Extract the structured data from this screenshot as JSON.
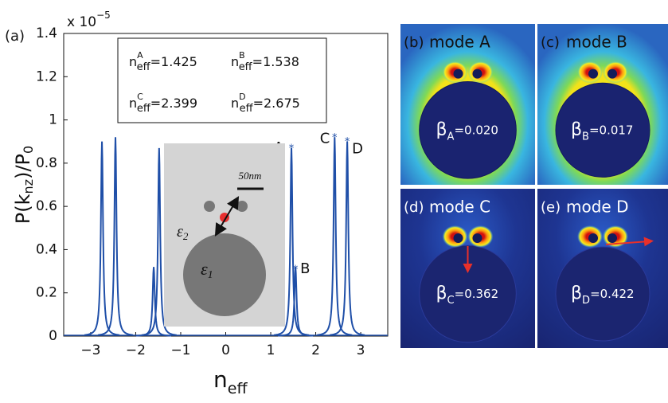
{
  "chart_data": {
    "type": "line",
    "panel_label": "(a)",
    "multiplier": {
      "base": "x 10",
      "exp": "−5"
    },
    "y_label": {
      "base": "P(k",
      "sub": "nz",
      "mid": ")/P",
      "sub2": "0"
    },
    "x_label": {
      "base": "n",
      "sub": "eff"
    },
    "x": [
      -2.75,
      -2.45,
      -1.6,
      -1.48,
      1.46,
      1.55,
      2.42,
      2.7
    ],
    "values": [
      0.9,
      0.92,
      0.32,
      0.87,
      0.87,
      0.32,
      0.92,
      0.9
    ],
    "color": "#1f4fa8",
    "xlim": [
      -3.6,
      3.6
    ],
    "ylim": [
      0,
      1.4
    ],
    "xticks": [
      {
        "value": -3,
        "label": "−3"
      },
      {
        "value": -2,
        "label": "−2"
      },
      {
        "value": -1,
        "label": "−1"
      },
      0,
      1,
      2,
      3
    ],
    "yticks": [
      0,
      0.2,
      0.4,
      0.6,
      0.8,
      1,
      1.2,
      1.4
    ],
    "annotations": [
      {
        "text": "A",
        "x": 1.46,
        "y": 0.87
      },
      {
        "text": "B",
        "x": 1.55,
        "y": 0.31
      },
      {
        "text": "C",
        "x": 2.42,
        "y": 0.92
      },
      {
        "text": "D",
        "x": 2.7,
        "y": 0.9
      }
    ],
    "legend_box": [
      {
        "base": "n",
        "sup": "A",
        "sub": "eff",
        "text": "=1.425"
      },
      {
        "base": "n",
        "sup": "B",
        "sub": "eff",
        "text": "=1.538"
      },
      {
        "base": "n",
        "sup": "C",
        "sub": "eff",
        "text": "=2.399"
      },
      {
        "base": "n",
        "sup": "D",
        "sub": "eff",
        "text": "=2.675"
      }
    ]
  },
  "inset": {
    "scale": "50nm",
    "eps2": {
      "base": "ε",
      "sub": "2"
    },
    "eps1": {
      "base": "ε",
      "sub": "1"
    }
  },
  "panels": [
    {
      "label": "(b)",
      "title": "mode A",
      "beta": {
        "base": "β",
        "sub": "A",
        "text": "=0.020"
      }
    },
    {
      "label": "(c)",
      "title": "mode B",
      "beta": {
        "base": "β",
        "sub": "B",
        "text": "=0.017"
      }
    },
    {
      "label": "(d)",
      "title": "mode C",
      "beta": {
        "base": "β",
        "sub": "C",
        "text": "=0.362"
      }
    },
    {
      "label": "(e)",
      "title": "mode D",
      "beta": {
        "base": "β",
        "sub": "D",
        "text": "=0.422"
      }
    }
  ]
}
